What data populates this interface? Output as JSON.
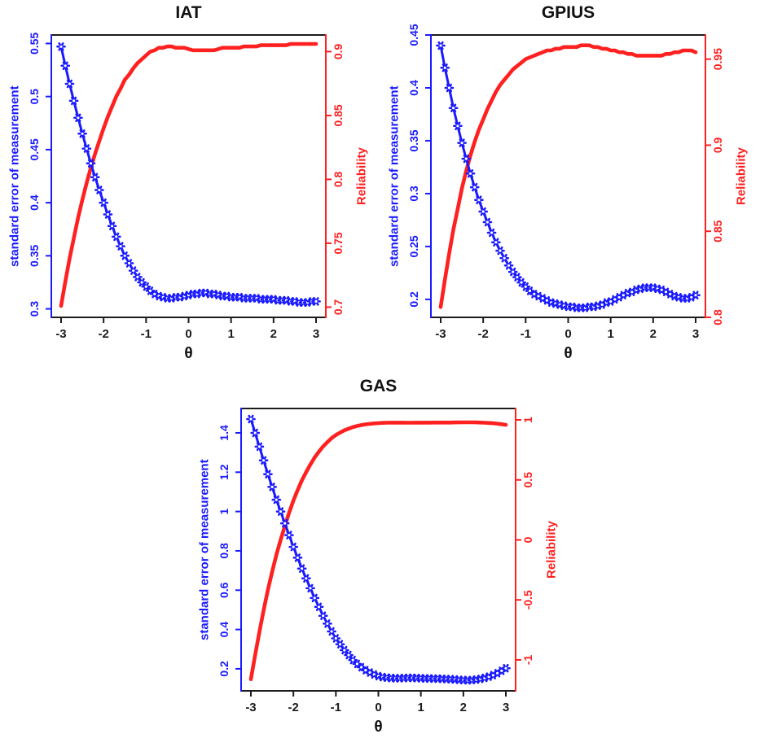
{
  "colors": {
    "sem": "#1a1aff",
    "reliability": "#ff2020",
    "frame": "#1c1c1c",
    "title_text": "#111111"
  },
  "chart_data": [
    {
      "type": "line",
      "title": "IAT",
      "xlabel": "θ",
      "x_ticks": [
        -3,
        -2,
        -1,
        0,
        1,
        2,
        3
      ],
      "x_range": [
        -3.23,
        3.23
      ],
      "left_axis": {
        "label": "standard error of measurement",
        "color": "#1a1aff",
        "ticks": [
          0.3,
          0.35,
          0.4,
          0.45,
          0.5,
          0.55
        ],
        "range": [
          0.292,
          0.558
        ]
      },
      "right_axis": {
        "label": "Reliability",
        "color": "#ff2020",
        "ticks": [
          0.7,
          0.75,
          0.8,
          0.85,
          0.9
        ],
        "range": [
          0.692,
          0.913
        ]
      },
      "x": [
        -3,
        -2.9,
        -2.8,
        -2.7,
        -2.6,
        -2.5,
        -2.4,
        -2.3,
        -2.2,
        -2.1,
        -2,
        -1.9,
        -1.8,
        -1.7,
        -1.6,
        -1.5,
        -1.4,
        -1.3,
        -1.2,
        -1.1,
        -1,
        -0.9,
        -0.8,
        -0.7,
        -0.6,
        -0.5,
        -0.4,
        -0.3,
        -0.2,
        -0.1,
        0,
        0.1,
        0.2,
        0.3,
        0.4,
        0.5,
        0.6,
        0.7,
        0.8,
        0.9,
        1,
        1.1,
        1.2,
        1.3,
        1.4,
        1.5,
        1.6,
        1.7,
        1.8,
        1.9,
        2,
        2.1,
        2.2,
        2.3,
        2.4,
        2.5,
        2.6,
        2.7,
        2.8,
        2.9,
        3
      ],
      "series": [
        {
          "name": "standard error of measurement",
          "axis": "left",
          "color": "#1a1aff",
          "marker": "asterisk",
          "values": [
            0.547,
            0.529,
            0.512,
            0.496,
            0.48,
            0.465,
            0.451,
            0.437,
            0.424,
            0.412,
            0.4,
            0.389,
            0.378,
            0.368,
            0.359,
            0.35,
            0.343,
            0.336,
            0.33,
            0.325,
            0.321,
            0.317,
            0.314,
            0.312,
            0.311,
            0.31,
            0.31,
            0.311,
            0.311,
            0.312,
            0.313,
            0.314,
            0.314,
            0.315,
            0.315,
            0.314,
            0.314,
            0.313,
            0.312,
            0.312,
            0.311,
            0.311,
            0.311,
            0.31,
            0.31,
            0.31,
            0.31,
            0.309,
            0.309,
            0.309,
            0.309,
            0.308,
            0.308,
            0.308,
            0.307,
            0.307,
            0.306,
            0.306,
            0.306,
            0.307,
            0.307
          ]
        },
        {
          "name": "Reliability",
          "axis": "right",
          "color": "#ff2020",
          "marker": "none",
          "values": [
            0.701,
            0.72,
            0.738,
            0.754,
            0.77,
            0.784,
            0.797,
            0.809,
            0.82,
            0.83,
            0.84,
            0.849,
            0.857,
            0.865,
            0.871,
            0.878,
            0.882,
            0.887,
            0.891,
            0.894,
            0.897,
            0.9,
            0.901,
            0.903,
            0.903,
            0.904,
            0.904,
            0.903,
            0.903,
            0.903,
            0.902,
            0.901,
            0.901,
            0.901,
            0.901,
            0.901,
            0.901,
            0.902,
            0.903,
            0.903,
            0.903,
            0.903,
            0.903,
            0.904,
            0.904,
            0.904,
            0.904,
            0.905,
            0.905,
            0.905,
            0.905,
            0.905,
            0.905,
            0.905,
            0.906,
            0.906,
            0.906,
            0.906,
            0.906,
            0.906,
            0.906
          ]
        }
      ]
    },
    {
      "type": "line",
      "title": "GPIUS",
      "xlabel": "θ",
      "x_ticks": [
        -3,
        -2,
        -1,
        0,
        1,
        2,
        3
      ],
      "x_range": [
        -3.23,
        3.23
      ],
      "left_axis": {
        "label": "standard error of measurement",
        "color": "#1a1aff",
        "ticks": [
          0.2,
          0.25,
          0.3,
          0.35,
          0.4,
          0.45
        ],
        "range": [
          0.183,
          0.45
        ]
      },
      "right_axis": {
        "label": "Reliability",
        "color": "#ff2020",
        "ticks": [
          0.8,
          0.85,
          0.9,
          0.95
        ],
        "range": [
          0.8,
          0.964
        ]
      },
      "x": [
        -3,
        -2.9,
        -2.8,
        -2.7,
        -2.6,
        -2.5,
        -2.4,
        -2.3,
        -2.2,
        -2.1,
        -2,
        -1.9,
        -1.8,
        -1.7,
        -1.6,
        -1.5,
        -1.4,
        -1.3,
        -1.2,
        -1.1,
        -1,
        -0.9,
        -0.8,
        -0.7,
        -0.6,
        -0.5,
        -0.4,
        -0.3,
        -0.2,
        -0.1,
        0,
        0.1,
        0.2,
        0.3,
        0.4,
        0.5,
        0.6,
        0.7,
        0.8,
        0.9,
        1,
        1.1,
        1.2,
        1.3,
        1.4,
        1.5,
        1.6,
        1.7,
        1.8,
        1.9,
        2,
        2.1,
        2.2,
        2.3,
        2.4,
        2.5,
        2.6,
        2.7,
        2.8,
        2.9,
        3
      ],
      "series": [
        {
          "name": "standard error of measurement",
          "axis": "left",
          "color": "#1a1aff",
          "marker": "asterisk",
          "values": [
            0.44,
            0.419,
            0.4,
            0.381,
            0.364,
            0.348,
            0.333,
            0.319,
            0.306,
            0.294,
            0.283,
            0.273,
            0.263,
            0.254,
            0.246,
            0.239,
            0.232,
            0.226,
            0.221,
            0.216,
            0.212,
            0.208,
            0.205,
            0.203,
            0.201,
            0.199,
            0.197,
            0.196,
            0.195,
            0.194,
            0.193,
            0.193,
            0.192,
            0.192,
            0.192,
            0.193,
            0.193,
            0.194,
            0.195,
            0.197,
            0.198,
            0.2,
            0.202,
            0.204,
            0.206,
            0.207,
            0.209,
            0.21,
            0.211,
            0.211,
            0.211,
            0.21,
            0.209,
            0.207,
            0.205,
            0.203,
            0.202,
            0.201,
            0.201,
            0.202,
            0.204
          ]
        },
        {
          "name": "Reliability",
          "axis": "right",
          "color": "#ff2020",
          "marker": "none",
          "values": [
            0.806,
            0.822,
            0.837,
            0.851,
            0.863,
            0.875,
            0.885,
            0.894,
            0.902,
            0.909,
            0.915,
            0.921,
            0.926,
            0.931,
            0.935,
            0.938,
            0.941,
            0.944,
            0.946,
            0.948,
            0.95,
            0.951,
            0.952,
            0.953,
            0.954,
            0.955,
            0.955,
            0.956,
            0.956,
            0.957,
            0.957,
            0.957,
            0.957,
            0.958,
            0.958,
            0.958,
            0.957,
            0.957,
            0.956,
            0.956,
            0.955,
            0.955,
            0.954,
            0.954,
            0.953,
            0.953,
            0.952,
            0.952,
            0.952,
            0.952,
            0.952,
            0.952,
            0.952,
            0.953,
            0.953,
            0.954,
            0.954,
            0.955,
            0.955,
            0.955,
            0.954
          ]
        }
      ]
    },
    {
      "type": "line",
      "title": "GAS",
      "xlabel": "θ",
      "x_ticks": [
        -3,
        -2,
        -1,
        0,
        1,
        2,
        3
      ],
      "x_range": [
        -3.23,
        3.23
      ],
      "left_axis": {
        "label": "standard error of measurement",
        "color": "#1a1aff",
        "ticks": [
          0.2,
          0.4,
          0.6,
          0.8,
          1,
          1.2,
          1.4
        ],
        "range": [
          0.088,
          1.524
        ]
      },
      "right_axis": {
        "label": "Reliability",
        "color": "#ff2020",
        "ticks": [
          -1,
          -0.5,
          0,
          0.5,
          1
        ],
        "range": [
          -1.258,
          1.095
        ]
      },
      "x": [
        -3,
        -2.9,
        -2.8,
        -2.7,
        -2.6,
        -2.5,
        -2.4,
        -2.3,
        -2.2,
        -2.1,
        -2,
        -1.9,
        -1.8,
        -1.7,
        -1.6,
        -1.5,
        -1.4,
        -1.3,
        -1.2,
        -1.1,
        -1,
        -0.9,
        -0.8,
        -0.7,
        -0.6,
        -0.5,
        -0.4,
        -0.3,
        -0.2,
        -0.1,
        0,
        0.1,
        0.2,
        0.3,
        0.4,
        0.5,
        0.6,
        0.7,
        0.8,
        0.9,
        1,
        1.1,
        1.2,
        1.3,
        1.4,
        1.5,
        1.6,
        1.7,
        1.8,
        1.9,
        2,
        2.1,
        2.2,
        2.3,
        2.4,
        2.5,
        2.6,
        2.7,
        2.8,
        2.9,
        3
      ],
      "series": [
        {
          "name": "standard error of measurement",
          "axis": "left",
          "color": "#1a1aff",
          "marker": "asterisk",
          "values": [
            1.47,
            1.4,
            1.33,
            1.26,
            1.19,
            1.125,
            1.06,
            1.0,
            0.94,
            0.88,
            0.82,
            0.765,
            0.71,
            0.66,
            0.61,
            0.56,
            0.515,
            0.47,
            0.43,
            0.39,
            0.355,
            0.325,
            0.295,
            0.27,
            0.245,
            0.225,
            0.208,
            0.193,
            0.181,
            0.171,
            0.163,
            0.158,
            0.155,
            0.153,
            0.152,
            0.152,
            0.153,
            0.154,
            0.154,
            0.153,
            0.152,
            0.151,
            0.151,
            0.15,
            0.15,
            0.149,
            0.148,
            0.147,
            0.146,
            0.144,
            0.143,
            0.142,
            0.143,
            0.145,
            0.149,
            0.154,
            0.16,
            0.168,
            0.178,
            0.19,
            0.203
          ]
        },
        {
          "name": "Reliability",
          "axis": "right",
          "color": "#ff2020",
          "marker": "none",
          "values": [
            -1.161,
            -0.96,
            -0.769,
            -0.588,
            -0.416,
            -0.266,
            -0.124,
            0.0,
            0.116,
            0.226,
            0.328,
            0.415,
            0.496,
            0.564,
            0.628,
            0.686,
            0.735,
            0.779,
            0.815,
            0.848,
            0.874,
            0.894,
            0.913,
            0.927,
            0.94,
            0.949,
            0.957,
            0.963,
            0.967,
            0.971,
            0.973,
            0.975,
            0.976,
            0.977,
            0.977,
            0.977,
            0.977,
            0.976,
            0.976,
            0.977,
            0.977,
            0.977,
            0.977,
            0.978,
            0.978,
            0.978,
            0.978,
            0.978,
            0.979,
            0.979,
            0.98,
            0.98,
            0.98,
            0.979,
            0.978,
            0.976,
            0.974,
            0.972,
            0.968,
            0.964,
            0.959
          ]
        }
      ]
    }
  ]
}
